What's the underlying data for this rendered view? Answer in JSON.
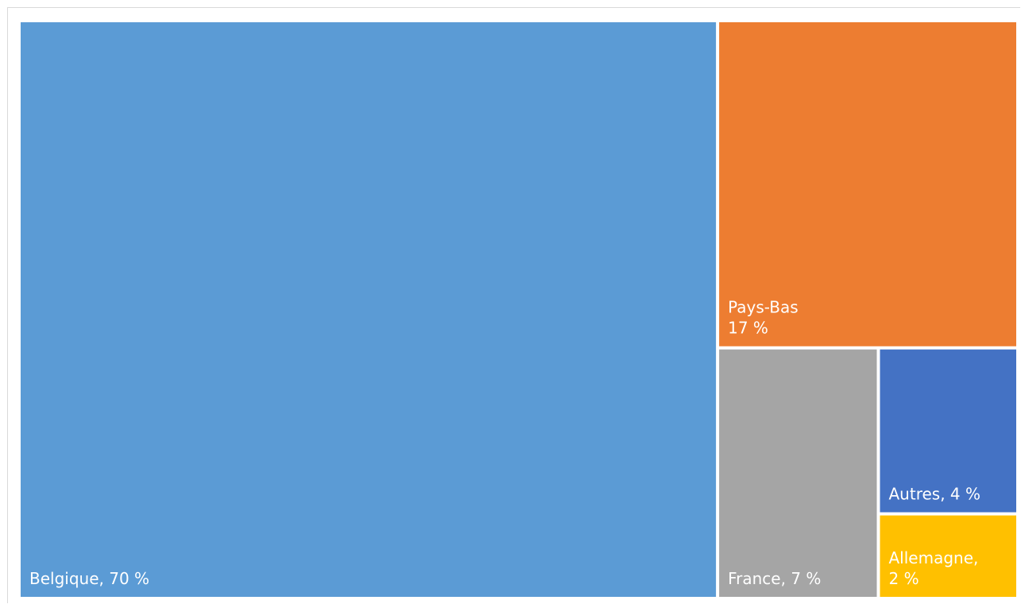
{
  "chart_data": {
    "type": "treemap",
    "title": "",
    "tiles": [
      {
        "name": "Belgique",
        "value": 70,
        "label_lines": [
          "Belgique, 70 %"
        ],
        "color": "#5b9bd5"
      },
      {
        "name": "Pays-Bas",
        "value": 17,
        "label_lines": [
          "Pays-Bas",
          "17 %"
        ],
        "color": "#ed7d31"
      },
      {
        "name": "France",
        "value": 7,
        "label_lines": [
          "France, 7 %"
        ],
        "color": "#a5a5a5"
      },
      {
        "name": "Autres",
        "value": 4,
        "label_lines": [
          "Autres, 4 %"
        ],
        "color": "#4472c4"
      },
      {
        "name": "Allemagne",
        "value": 2,
        "label_lines": [
          "Allemagne,",
          "2 %"
        ],
        "color": "#ffc000"
      }
    ]
  }
}
